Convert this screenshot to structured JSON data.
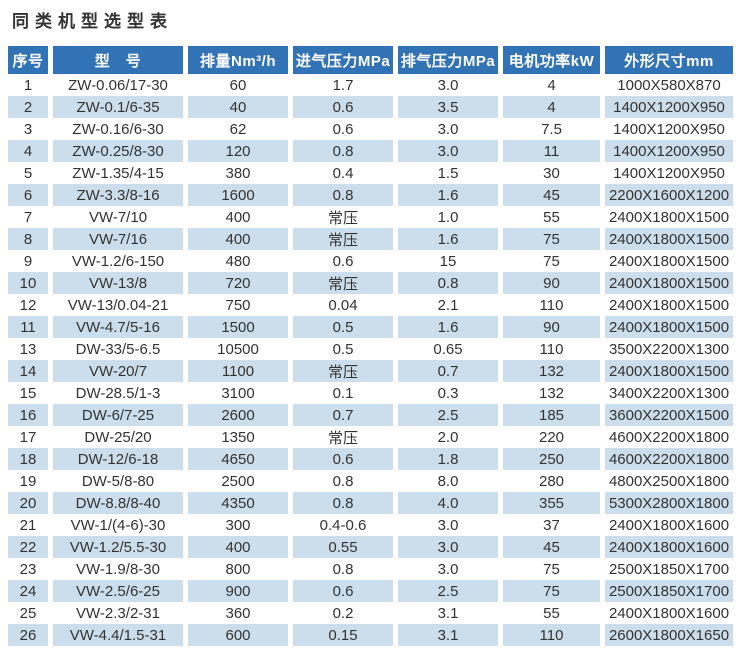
{
  "chart_data": {
    "type": "table",
    "title": "同类机型选型表",
    "columns": [
      "序号",
      "型　号",
      "排量Nm³/h",
      "进气压力MPa",
      "排气压力MPa",
      "电机功率kW",
      "外形尺寸mm"
    ],
    "rows": [
      [
        "1",
        "ZW-0.06/17-30",
        "60",
        "1.7",
        "3.0",
        "4",
        "1000X580X870"
      ],
      [
        "2",
        "ZW-0.1/6-35",
        "40",
        "0.6",
        "3.5",
        "4",
        "1400X1200X950"
      ],
      [
        "3",
        "ZW-0.16/6-30",
        "62",
        "0.6",
        "3.0",
        "7.5",
        "1400X1200X950"
      ],
      [
        "4",
        "ZW-0.25/8-30",
        "120",
        "0.8",
        "3.0",
        "11",
        "1400X1200X950"
      ],
      [
        "5",
        "ZW-1.35/4-15",
        "380",
        "0.4",
        "1.5",
        "30",
        "1400X1200X950"
      ],
      [
        "6",
        "ZW-3.3/8-16",
        "1600",
        "0.8",
        "1.6",
        "45",
        "2200X1600X1200"
      ],
      [
        "7",
        "VW-7/10",
        "400",
        "常压",
        "1.0",
        "55",
        "2400X1800X1500"
      ],
      [
        "8",
        "VW-7/16",
        "400",
        "常压",
        "1.6",
        "75",
        "2400X1800X1500"
      ],
      [
        "9",
        "VW-1.2/6-150",
        "480",
        "0.6",
        "15",
        "75",
        "2400X1800X1500"
      ],
      [
        "10",
        "VW-13/8",
        "720",
        "常压",
        "0.8",
        "90",
        "2400X1800X1500"
      ],
      [
        "12",
        "VW-13/0.04-21",
        "750",
        "0.04",
        "2.1",
        "110",
        "2400X1800X1500"
      ],
      [
        "11",
        "VW-4.7/5-16",
        "1500",
        "0.5",
        "1.6",
        "90",
        "2400X1800X1500"
      ],
      [
        "13",
        "DW-33/5-6.5",
        "10500",
        "0.5",
        "0.65",
        "110",
        "3500X2200X1300"
      ],
      [
        "14",
        "VW-20/7",
        "1100",
        "常压",
        "0.7",
        "132",
        "2400X1800X1500"
      ],
      [
        "15",
        "DW-28.5/1-3",
        "3100",
        "0.1",
        "0.3",
        "132",
        "3400X2200X1300"
      ],
      [
        "16",
        "DW-6/7-25",
        "2600",
        "0.7",
        "2.5",
        "185",
        "3600X2200X1500"
      ],
      [
        "17",
        "DW-25/20",
        "1350",
        "常压",
        "2.0",
        "220",
        "4600X2200X1800"
      ],
      [
        "18",
        "DW-12/6-18",
        "4650",
        "0.6",
        "1.8",
        "250",
        "4600X2200X1800"
      ],
      [
        "19",
        "DW-5/8-80",
        "2500",
        "0.8",
        "8.0",
        "280",
        "4800X2500X1800"
      ],
      [
        "20",
        "DW-8.8/8-40",
        "4350",
        "0.8",
        "4.0",
        "355",
        "5300X2800X1800"
      ],
      [
        "21",
        "VW-1/(4-6)-30",
        "300",
        "0.4-0.6",
        "3.0",
        "37",
        "2400X1800X1600"
      ],
      [
        "22",
        "VW-1.2/5.5-30",
        "400",
        "0.55",
        "3.0",
        "45",
        "2400X1800X1600"
      ],
      [
        "23",
        "VW-1.9/8-30",
        "800",
        "0.8",
        "3.0",
        "75",
        "2500X1850X1700"
      ],
      [
        "24",
        "VW-2.5/6-25",
        "900",
        "0.6",
        "2.5",
        "75",
        "2500X1850X1700"
      ],
      [
        "25",
        "VW-2.3/2-31",
        "360",
        "0.2",
        "3.1",
        "55",
        "2400X1800X1600"
      ],
      [
        "26",
        "VW-4.4/1.5-31",
        "600",
        "0.15",
        "3.1",
        "110",
        "2600X1800X1650"
      ]
    ],
    "layout": {
      "legend": "none",
      "grid": "off",
      "row_striping": "alternate white / light-blue"
    }
  },
  "colors": {
    "header_bg": "#3173b5",
    "header_text": "#ffffff",
    "row_alt_bg": "#ccdeeb",
    "body_text": "#333333",
    "title_text": "#333333"
  }
}
